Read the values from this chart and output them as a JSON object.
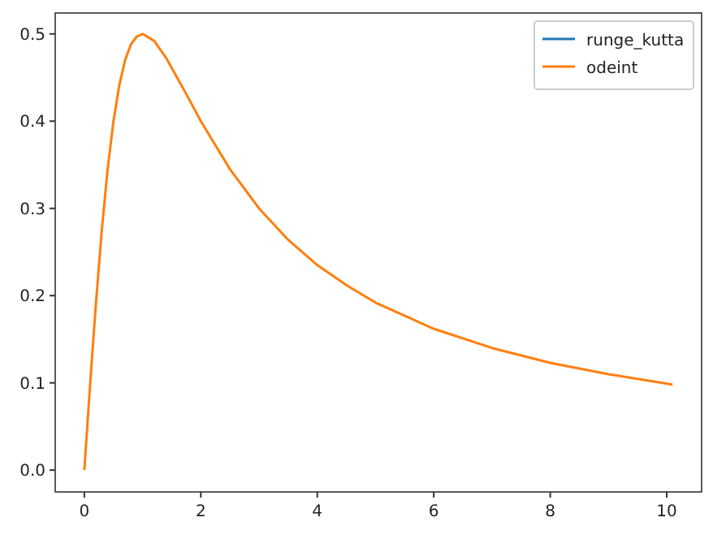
{
  "chart_data": {
    "type": "line",
    "x": [
      0,
      0.1,
      0.2,
      0.3,
      0.4,
      0.5,
      0.6,
      0.7,
      0.8,
      0.9,
      1.0,
      1.2,
      1.4,
      1.6,
      1.8,
      2,
      2.5,
      3,
      3.5,
      4,
      4.5,
      5,
      6,
      7,
      8,
      9,
      10.1
    ],
    "series": [
      {
        "name": "runge_kutta",
        "color": "#1f77b4",
        "values": [
          null,
          null,
          null,
          null,
          null,
          null,
          null,
          null,
          null,
          null,
          null,
          null,
          null,
          null,
          null,
          null,
          null,
          null,
          null,
          null,
          null,
          null,
          null,
          null,
          null,
          null,
          null
        ]
      },
      {
        "name": "odeint",
        "color": "#ff7f0e",
        "values": [
          0,
          0.099,
          0.192,
          0.275,
          0.345,
          0.4,
          0.441,
          0.47,
          0.488,
          0.497,
          0.5,
          0.492,
          0.473,
          0.449,
          0.425,
          0.4,
          0.345,
          0.3,
          0.264,
          0.235,
          0.212,
          0.192,
          0.162,
          0.14,
          0.123,
          0.11,
          0.098
        ]
      }
    ],
    "xlim": [
      -0.5,
      10.6
    ],
    "xticks": [
      0,
      2,
      4,
      6,
      8,
      10
    ],
    "ylim": [
      -0.025,
      0.524
    ],
    "yticks": [
      {
        "value": 0,
        "label": "0.0"
      },
      {
        "value": 0.1,
        "label": "0.1"
      },
      {
        "value": 0.2,
        "label": "0.2"
      },
      {
        "value": 0.3,
        "label": "0.3"
      },
      {
        "value": 0.4,
        "label": "0.4"
      },
      {
        "value": 0.5,
        "label": "0.5"
      }
    ],
    "legend": "top right",
    "grid": false
  }
}
